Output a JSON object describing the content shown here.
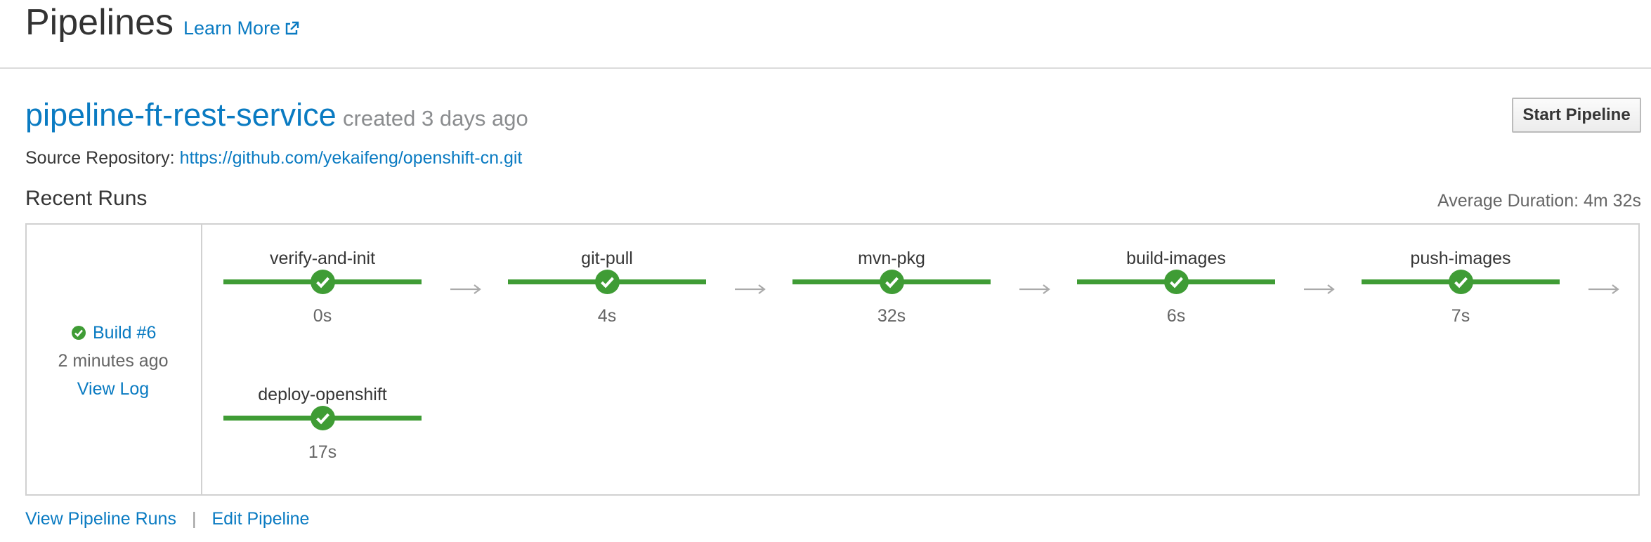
{
  "header": {
    "title": "Pipelines",
    "learn_more": "Learn More"
  },
  "pipeline": {
    "name": "pipeline-ft-rest-service",
    "created": "created 3 days ago",
    "start_button": "Start Pipeline",
    "source_label": "Source Repository:",
    "source_url": "https://github.com/yekaifeng/openshift-cn.git"
  },
  "runs": {
    "title": "Recent Runs",
    "average_duration": "Average Duration: 4m 32s",
    "build": {
      "label": "Build #6",
      "time": "2 minutes ago",
      "view_log": "View Log"
    },
    "stages": [
      {
        "name": "verify-and-init",
        "duration": "0s"
      },
      {
        "name": "git-pull",
        "duration": "4s"
      },
      {
        "name": "mvn-pkg",
        "duration": "32s"
      },
      {
        "name": "build-images",
        "duration": "6s"
      },
      {
        "name": "push-images",
        "duration": "7s"
      },
      {
        "name": "deploy-openshift",
        "duration": "17s"
      }
    ]
  },
  "footer": {
    "view_runs": "View Pipeline Runs",
    "separator": "|",
    "edit": "Edit Pipeline"
  },
  "colors": {
    "link": "#0a7bc2",
    "success": "#3f9c35",
    "border": "#d1d1d1"
  }
}
